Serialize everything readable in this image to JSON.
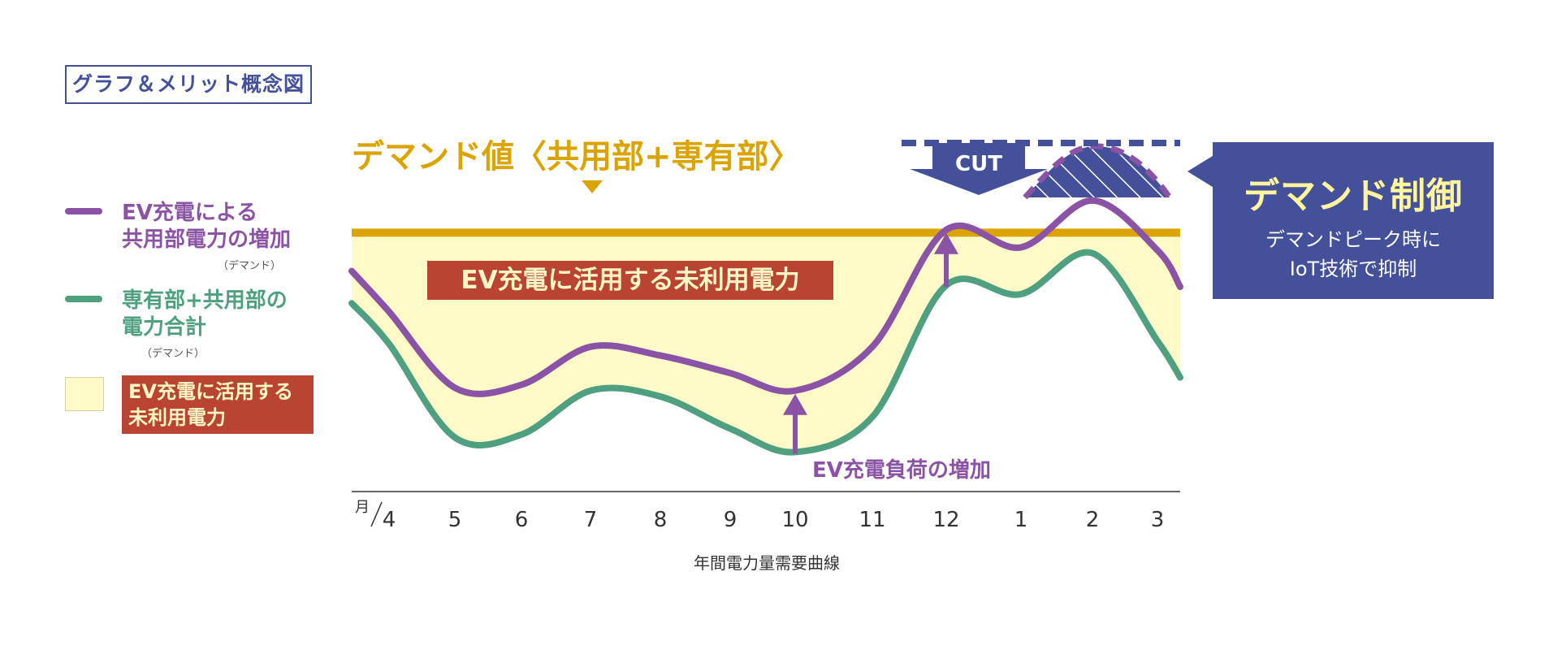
{
  "header": {
    "title": "グラフ＆メリット概念図"
  },
  "legend": {
    "items": [
      {
        "color": "#8a53a6",
        "line1": "EV充電による",
        "line2": "共用部電力の増加",
        "sub": "（デマンド）"
      },
      {
        "color": "#4ea081",
        "line1": "専有部+共用部の",
        "line2": "電力合計",
        "sub": "（デマンド）"
      }
    ],
    "swatch_label_line1": "EV充電に活用する",
    "swatch_label_line2": "未利用電力"
  },
  "callout": {
    "title": "デマンド制御",
    "line1": "デマンドピーク時に",
    "line2": "IoT技術で抑制"
  },
  "chart_data": {
    "type": "line",
    "title": "デマンド値〈共用部+専有部〉",
    "xlabel": "年間電力量需要曲線",
    "x_unit_label": "月",
    "categories": [
      "4",
      "5",
      "6",
      "7",
      "8",
      "9",
      "10",
      "11",
      "12",
      "1",
      "2",
      "3"
    ],
    "demand_threshold_level": 0.76,
    "series": [
      {
        "name": "EV充電による共用部電力の増加",
        "color": "#8a53a6",
        "values": [
          0.49,
          0.23,
          0.24,
          0.37,
          0.34,
          0.28,
          0.22,
          0.37,
          0.77,
          0.71,
          0.87,
          0.7
        ]
      },
      {
        "name": "専有部+共用部の電力合計",
        "color": "#4ea081",
        "values": [
          0.38,
          0.06,
          0.07,
          0.22,
          0.2,
          0.09,
          0.01,
          0.13,
          0.58,
          0.55,
          0.69,
          0.39
        ]
      }
    ],
    "annotations": {
      "unused_power": "EV充電に活用する未利用電力",
      "load_increase": "EV充電負荷の増加",
      "cut": "CUT"
    },
    "colors": {
      "threshold": "#dba400",
      "fill": "#fffac8",
      "label_bg": "#b94431",
      "accent": "#44509a"
    }
  }
}
